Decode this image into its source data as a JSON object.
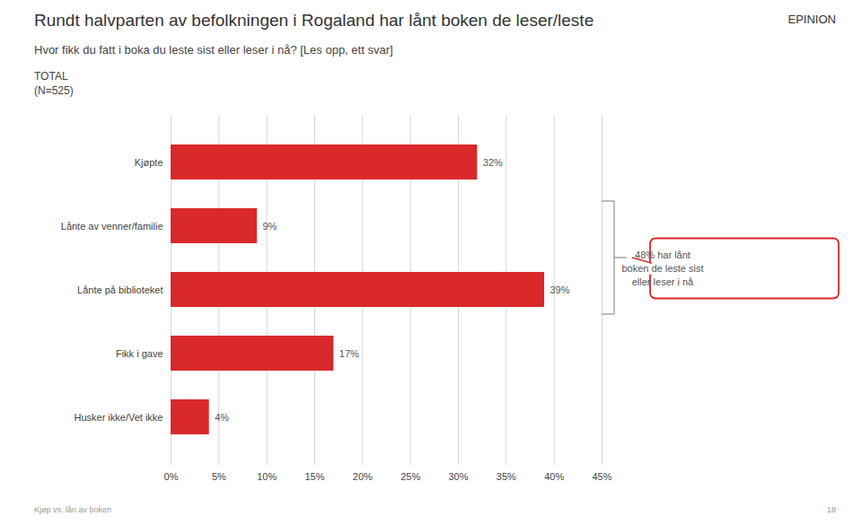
{
  "chart_data": {
    "type": "bar",
    "orientation": "horizontal",
    "title": "Rundt halvparten av befolkningen i Rogaland har lånt boken de leser/leste",
    "subtitle": "Hvor fikk du fatt i boka du leste sist eller leser i nå? [Les opp, ett svar]",
    "note": "TOTAL\n(N=525)",
    "logo": "EPINION",
    "footer": "Kjøp vs. lån av boken",
    "page": "18",
    "categories": [
      "Kjøpte",
      "Lånte av venner/familie",
      "Lånte på biblioteket",
      "Fikk i gave",
      "Husker ikke/Vet ikke"
    ],
    "values": [
      32,
      9,
      39,
      17,
      4
    ],
    "value_labels": [
      "32%",
      "9%",
      "39%",
      "17%",
      "4%"
    ],
    "data_labels": true,
    "color": "#d9292b",
    "xlim": [
      0,
      45
    ],
    "xticks": [
      {
        "value": 0,
        "label": "0%"
      },
      {
        "value": 5,
        "label": "5%"
      },
      {
        "value": 10,
        "label": "10%"
      },
      {
        "value": 15,
        "label": "15%"
      },
      {
        "value": 20,
        "label": "20%"
      },
      {
        "value": 25,
        "label": "25%"
      },
      {
        "value": 30,
        "label": "30%"
      },
      {
        "value": 35,
        "label": "35%"
      },
      {
        "value": 40,
        "label": "40%"
      },
      {
        "value": 45,
        "label": "45%"
      }
    ],
    "grid": true,
    "annotations": [
      {
        "text": "48% har lånt\nboken de leste sist\neller leser i nå",
        "color": "#d9292b",
        "categories": [
          "Lånte av venner/familie",
          "Lånte på biblioteket"
        ]
      }
    ]
  }
}
